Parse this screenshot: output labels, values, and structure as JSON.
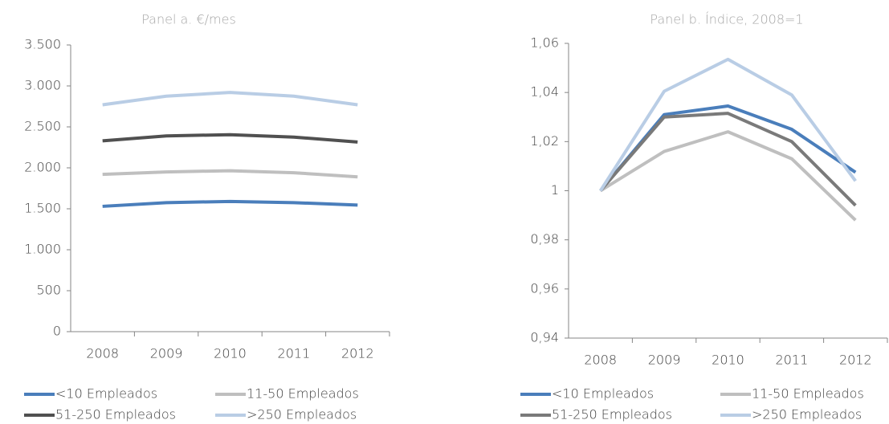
{
  "chart_data": [
    {
      "type": "line",
      "subtitle": "Panel a. €/mes",
      "categories": [
        "2008",
        "2009",
        "2010",
        "2011",
        "2012"
      ],
      "ylim": [
        0,
        3500
      ],
      "yticks": [
        0,
        500,
        {
          "value": 1000,
          "label": "1.000"
        },
        {
          "value": 1500,
          "label": "1.500"
        },
        {
          "value": 2000,
          "label": "2.000"
        },
        {
          "value": 2500,
          "label": "2.500"
        },
        {
          "value": 3000,
          "label": "3.000"
        },
        {
          "value": 3500,
          "label": "3.500"
        }
      ],
      "legend": "bottom",
      "series": [
        {
          "name": "<10 Empleados",
          "color": "#4a7ebb",
          "values": [
            1530,
            1575,
            1590,
            1575,
            1545
          ]
        },
        {
          "name": "11-50 Empleados",
          "color": "#bfbfbf",
          "values": [
            1920,
            1950,
            1965,
            1940,
            1890
          ]
        },
        {
          "name": "51-250 Empleados",
          "color": "#505050",
          "values": [
            2330,
            2390,
            2405,
            2375,
            2315
          ]
        },
        {
          "name": ">250 Empleados",
          "color": "#b9cde5",
          "values": [
            2770,
            2875,
            2920,
            2875,
            2770
          ]
        }
      ]
    },
    {
      "type": "line",
      "subtitle": "Panel b. Índice, 2008=1",
      "categories": [
        "2008",
        "2009",
        "2010",
        "2011",
        "2012"
      ],
      "ylim": [
        0.94,
        1.06
      ],
      "yticks": [
        {
          "value": 0.94,
          "label": "0,94"
        },
        {
          "value": 0.96,
          "label": "0,96"
        },
        {
          "value": 0.98,
          "label": "0,98"
        },
        1,
        {
          "value": 1.02,
          "label": "1,02"
        },
        {
          "value": 1.04,
          "label": "1,04"
        },
        {
          "value": 1.06,
          "label": "1,06"
        }
      ],
      "legend": "bottom",
      "series": [
        {
          "name": "<10 Empleados",
          "color": "#4a7ebb",
          "values": [
            1,
            1.031,
            1.0345,
            1.025,
            1.0075
          ]
        },
        {
          "name": "11-50 Empleados",
          "color": "#bfbfbf",
          "values": [
            1,
            1.016,
            1.024,
            1.013,
            0.988
          ]
        },
        {
          "name": "51-250 Empleados",
          "color": "#7a7a7a",
          "values": [
            1,
            1.03,
            1.0315,
            1.02,
            0.994
          ]
        },
        {
          "name": ">250 Empleados",
          "color": "#b9cde5",
          "values": [
            1,
            1.0405,
            1.0535,
            1.039,
            1.004
          ]
        }
      ]
    }
  ]
}
